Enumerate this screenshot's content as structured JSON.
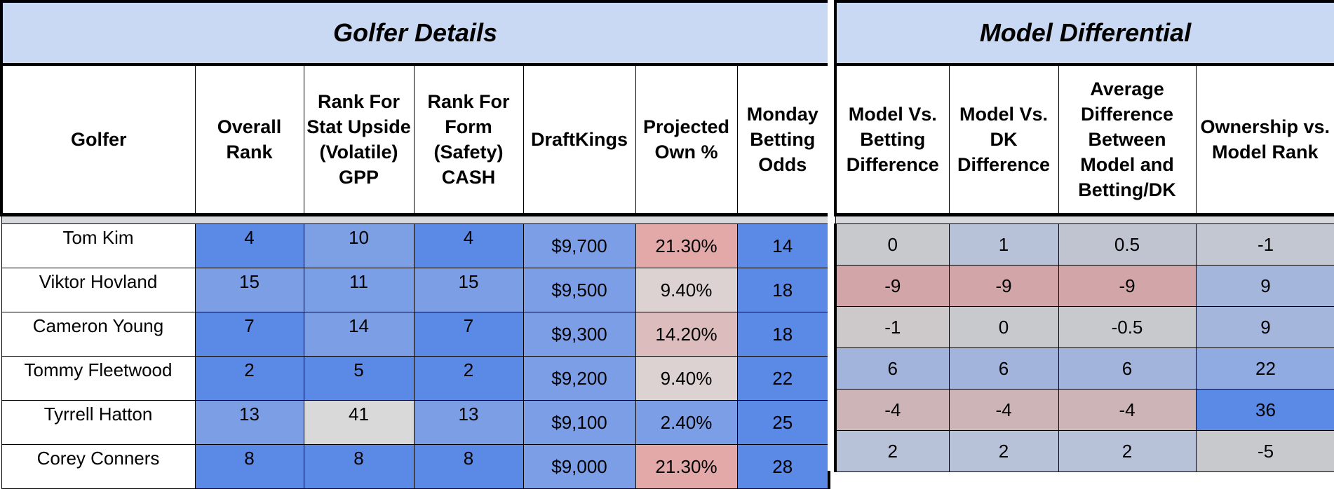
{
  "left_table": {
    "title": "Golfer Details",
    "headers": [
      "Golfer",
      "Overall Rank",
      "Rank For Stat Upside (Volatile) GPP",
      "Rank For Form (Safety) CASH",
      "DraftKings",
      "Projected Own %",
      "Monday Betting Odds"
    ],
    "rows": [
      [
        "Tom Kim",
        "4",
        "10",
        "4",
        "$9,700",
        "21.30%",
        "14"
      ],
      [
        "Viktor Hovland",
        "15",
        "11",
        "15",
        "$9,500",
        "9.40%",
        "18"
      ],
      [
        "Cameron Young",
        "7",
        "14",
        "7",
        "$9,300",
        "14.20%",
        "18"
      ],
      [
        "Tommy Fleetwood",
        "2",
        "5",
        "2",
        "$9,200",
        "9.40%",
        "22"
      ],
      [
        "Tyrrell Hatton",
        "13",
        "41",
        "13",
        "$9,100",
        "2.40%",
        "25"
      ],
      [
        "Corey Conners",
        "8",
        "8",
        "8",
        "$9,000",
        "21.30%",
        "28"
      ]
    ],
    "colors": [
      [
        "#ffffff",
        "#5b89e6",
        "#7d9fe4",
        "#5b89e6",
        "#7c9ee6",
        "#e3a9a9",
        "#5b89e6"
      ],
      [
        "#ffffff",
        "#7c9ee5",
        "#7b9fe6",
        "#7c9ee5",
        "#7c9ee6",
        "#dcd2d2",
        "#5b89e6"
      ],
      [
        "#ffffff",
        "#5b89e6",
        "#7c9ee5",
        "#5b89e6",
        "#7c9ee6",
        "#dcbcbc",
        "#5b89e6"
      ],
      [
        "#ffffff",
        "#5b89e6",
        "#5b89e6",
        "#5b89e6",
        "#7c9ee6",
        "#dcd2d2",
        "#5b89e6"
      ],
      [
        "#ffffff",
        "#7c9ee5",
        "#d9d9d9",
        "#7c9ee5",
        "#7c9ee6",
        "#7c9ee6",
        "#5b89e6"
      ],
      [
        "#ffffff",
        "#5b89e6",
        "#5b89e6",
        "#5b89e6",
        "#7c9ee6",
        "#e3a9a9",
        "#5b89e6"
      ]
    ]
  },
  "right_table": {
    "title": "Model Differential",
    "headers": [
      "Model Vs. Betting Difference",
      "Model Vs. DK Difference",
      "Average Difference Between Model and Betting/DK",
      "Ownership vs. Model Rank"
    ],
    "rows": [
      [
        "0",
        "1",
        "0.5",
        "-1"
      ],
      [
        "-9",
        "-9",
        "-9",
        "9"
      ],
      [
        "-1",
        "0",
        "-0.5",
        "9"
      ],
      [
        "6",
        "6",
        "6",
        "22"
      ],
      [
        "-4",
        "-4",
        "-4",
        "36"
      ],
      [
        "2",
        "2",
        "2",
        "-5"
      ]
    ],
    "colors": [
      [
        "#c8c9cd",
        "#b7c1d7",
        "#c0c4d0",
        "#c3c7d1"
      ],
      [
        "#d2a5a8",
        "#d2a5a8",
        "#d2a5a8",
        "#a5b6dc"
      ],
      [
        "#cdc9cb",
        "#c8c9cd",
        "#c8c9cd",
        "#a5b6dc"
      ],
      [
        "#a2b4dc",
        "#a2b4dc",
        "#a2b4dc",
        "#8fabe2"
      ],
      [
        "#cdb4b6",
        "#cdb4b6",
        "#cdb4b6",
        "#5b89e6"
      ],
      [
        "#b7c1d7",
        "#b7c1d7",
        "#b7c1d7",
        "#c8c9cd"
      ]
    ]
  }
}
